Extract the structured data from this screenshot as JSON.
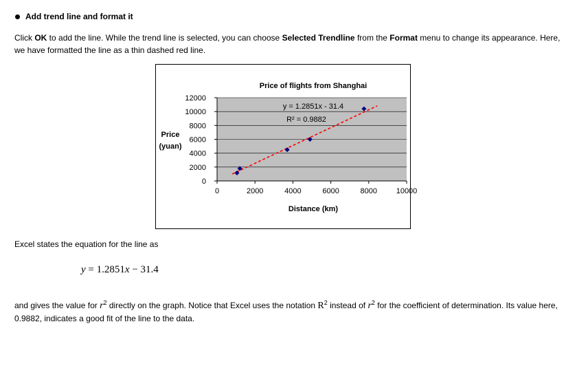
{
  "heading": "Add trend line and format it",
  "para1": {
    "t1": "Click ",
    "b1": "OK",
    "t2": " to add the line. While the trend line is selected, you can choose ",
    "b2": "Selected Trendline",
    "t3": " from the ",
    "b3": "Format",
    "t4": " menu to change its appearance. Here, we have formatted the line as a thin dashed red line."
  },
  "para2": "Excel states the equation for the line as",
  "equation": {
    "lhs": "y",
    "mid": " = 1.2851",
    "x": "x",
    "rhs": " − 31.4"
  },
  "para3": {
    "t1": "and gives the value for ",
    "r": "r",
    "sup": "2",
    "t2": " directly on the graph. Notice that Excel uses the notation ",
    "R": "R",
    "t3": " instead of ",
    "t4": " for the coefficient of determination. Its value here, 0.9882, indicates a good fit of the line to the data."
  },
  "chart_data": {
    "type": "scatter",
    "title": "Price of flights from Shanghai",
    "xlabel": "Distance (km)",
    "ylabel": "Price (yuan)",
    "ylabel_lines": [
      "Price",
      "(yuan)"
    ],
    "xlim": [
      0,
      10000
    ],
    "ylim": [
      0,
      12000
    ],
    "xticks": [
      0,
      2000,
      4000,
      6000,
      8000,
      10000
    ],
    "yticks": [
      0,
      2000,
      4000,
      6000,
      8000,
      10000,
      12000
    ],
    "grid": true,
    "plot_background": "#c0c0c0",
    "marker_color": "#000080",
    "trendline_color": "#ff0000",
    "points": [
      {
        "x": 1050,
        "y": 1150
      },
      {
        "x": 1200,
        "y": 1800
      },
      {
        "x": 3700,
        "y": 4500
      },
      {
        "x": 4900,
        "y": 6000
      },
      {
        "x": 7750,
        "y": 10400
      }
    ],
    "trendline": {
      "slope": 1.2851,
      "intercept": -31.4,
      "x_range": [
        800,
        8450
      ],
      "style": "dashed"
    },
    "equation_label": "y = 1.2851x - 31.4",
    "r2_label": "R² = 0.9882"
  }
}
